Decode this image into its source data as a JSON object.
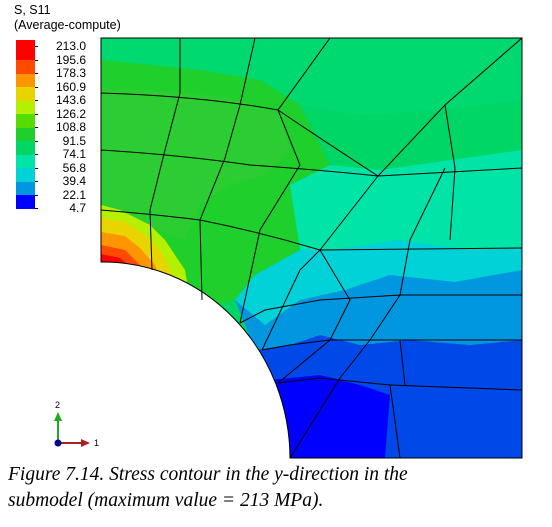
{
  "legend": {
    "title_line1": "S, S11",
    "title_line2": "(Average-compute)",
    "entries": [
      {
        "label": "213.0",
        "color": "#ff0000"
      },
      {
        "label": "195.6",
        "color": "#ff4a00"
      },
      {
        "label": "178.3",
        "color": "#ff9500"
      },
      {
        "label": "160.9",
        "color": "#e8d400"
      },
      {
        "label": "143.6",
        "color": "#b5f000"
      },
      {
        "label": "126.2",
        "color": "#55dc00"
      },
      {
        "label": "108.8",
        "color": "#1fcf2c"
      },
      {
        "label": "91.5",
        "color": "#00d666"
      },
      {
        "label": "74.1",
        "color": "#00e4a8"
      },
      {
        "label": "56.8",
        "color": "#00d2d8"
      },
      {
        "label": "39.4",
        "color": "#0097e0"
      },
      {
        "label": "22.1",
        "color": "#0048e8"
      },
      {
        "label": "4.7",
        "color": "#0000ff"
      }
    ]
  },
  "axes_triad": {
    "vertical_label": "2",
    "horizontal_label": "1",
    "vertical_color": "#1faa1f",
    "horizontal_color": "#aa1f1f"
  },
  "caption": {
    "line1": "Figure 7.14.  Stress contour in the y-direction in the",
    "line2": "submodel (maximum value = 213 MPa)."
  }
}
